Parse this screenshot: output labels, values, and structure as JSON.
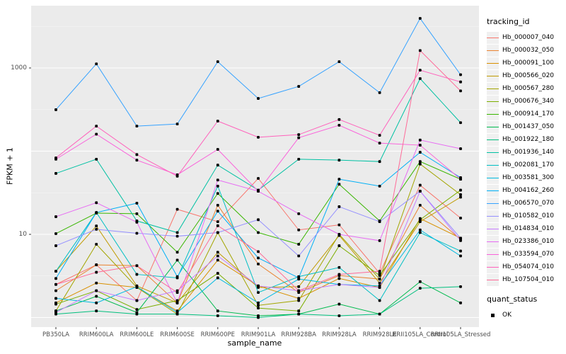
{
  "figure": {
    "panel_bg": "#EBEBEB",
    "grid_color": "#FFFFFF",
    "tick_color": "#333333",
    "tick_text_color": "#4D4D4D",
    "point_color": "#000000"
  },
  "chart_data": {
    "type": "line",
    "title": "",
    "xlabel": "sample_name",
    "ylabel": "FPKM + 1",
    "y_scale": "log10",
    "grid": true,
    "legend_position": "right",
    "ylim": [
      0.8,
      5600
    ],
    "y_ticks": [
      {
        "label": "1000",
        "value": 1000
      },
      {
        "label": "10",
        "value": 10
      }
    ],
    "categories": [
      "PB350LA",
      "RRIM600LA",
      "RRIM600LE",
      "RRIM600SE",
      "RRIM600PE",
      "RRIM901LA",
      "RRIM928BA",
      "RRIM928LA",
      "RRIM928LE",
      "RRII105LA_Control",
      "RRII105LA_Stressed"
    ],
    "series": [
      {
        "name": "Hb_000007_040",
        "color": "#F8766D",
        "values": [
          2.5,
          4.3,
          1.6,
          20,
          14.2,
          47,
          11.3,
          13,
          3.4,
          39,
          15.7
        ]
      },
      {
        "name": "Hb_000032_050",
        "color": "#EA8331",
        "values": [
          2.1,
          4.3,
          4.2,
          1.5,
          22.4,
          4.4,
          2.0,
          3.2,
          2.9,
          22.4,
          8.7
        ]
      },
      {
        "name": "Hb_000091_100",
        "color": "#D89000",
        "values": [
          1.5,
          2.6,
          2.3,
          1.2,
          4.9,
          2.4,
          1.7,
          2.95,
          2.3,
          15.5,
          9.0
        ]
      },
      {
        "name": "Hb_000566_020",
        "color": "#C09B00",
        "values": [
          3.6,
          12.6,
          2.4,
          1.5,
          6.1,
          2.3,
          2.35,
          9.7,
          2.6,
          14.2,
          28
        ]
      },
      {
        "name": "Hb_000567_280",
        "color": "#A3A500",
        "values": [
          1.2,
          7.6,
          2.3,
          1.1,
          10.5,
          1.4,
          1.6,
          10,
          2.9,
          70,
          30
        ]
      },
      {
        "name": "Hb_000676_340",
        "color": "#7CAE00",
        "values": [
          1.45,
          2.1,
          1.25,
          1.6,
          3.4,
          1.3,
          1.2,
          7.3,
          3.2,
          15,
          34
        ]
      },
      {
        "name": "Hb_000914_170",
        "color": "#39B600",
        "values": [
          10.2,
          18,
          17.7,
          6.1,
          31,
          10.5,
          7.6,
          40,
          14.5,
          75,
          46
        ]
      },
      {
        "name": "Hb_001437_050",
        "color": "#00BB4E",
        "values": [
          1.2,
          1.8,
          1.15,
          4.9,
          1.2,
          1.05,
          1.1,
          1.45,
          1.1,
          2.7,
          1.5
        ]
      },
      {
        "name": "Hb_001922_180",
        "color": "#00BF7D",
        "values": [
          1.1,
          1.2,
          1.1,
          1.1,
          1.05,
          1.0,
          1.1,
          1.05,
          1.1,
          2.25,
          2.35
        ]
      },
      {
        "name": "Hb_001936_140",
        "color": "#00C1A3",
        "values": [
          54,
          80,
          14.5,
          10.5,
          68,
          34,
          80,
          78,
          75,
          745,
          220
        ]
      },
      {
        "name": "Hb_002081_170",
        "color": "#00BFC4",
        "values": [
          3.6,
          18.3,
          3.3,
          3.0,
          38,
          2.0,
          3.1,
          4.0,
          1.6,
          10.5,
          6.3
        ]
      },
      {
        "name": "Hb_003581_300",
        "color": "#00BAE0",
        "values": [
          1.7,
          1.5,
          2.35,
          1.15,
          3.0,
          1.5,
          2.9,
          2.5,
          2.4,
          11.3,
          5.5
        ]
      },
      {
        "name": "Hb_004162_260",
        "color": "#00B0F6",
        "values": [
          2.95,
          18.3,
          23.7,
          3.1,
          19,
          5.2,
          3.0,
          46,
          38,
          97,
          48
        ]
      },
      {
        "name": "Hb_006570_070",
        "color": "#35A2FF",
        "values": [
          315,
          1120,
          200,
          212,
          1190,
          430,
          600,
          1190,
          505,
          3940,
          830
        ]
      },
      {
        "name": "Hb_010582_010",
        "color": "#9590FF",
        "values": [
          7.3,
          11.5,
          10.3,
          9.5,
          10.5,
          15,
          5.5,
          21.5,
          14.2,
          33,
          9.0
        ]
      },
      {
        "name": "Hb_014834_010",
        "color": "#C77CFF",
        "values": [
          1.15,
          2.1,
          1.6,
          2.1,
          5.5,
          2.4,
          2.1,
          2.5,
          2.3,
          33,
          8.4
        ]
      },
      {
        "name": "Hb_023386_010",
        "color": "#E76BF3",
        "values": [
          16.3,
          24,
          14,
          1.5,
          45,
          33,
          17.7,
          10,
          8.4,
          136,
          107
        ]
      },
      {
        "name": "Hb_033594_070",
        "color": "#FA62DB",
        "values": [
          80,
          160,
          78,
          52,
          105,
          33,
          145,
          205,
          125,
          118,
          46
        ]
      },
      {
        "name": "Hb_054074_010",
        "color": "#FF62BC",
        "values": [
          83,
          200,
          91,
          50,
          230,
          147,
          158,
          240,
          155,
          940,
          680
        ]
      },
      {
        "name": "Hb_107504_010",
        "color": "#FF6A98",
        "values": [
          2.5,
          3.5,
          4.2,
          2.0,
          12.7,
          6.2,
          2.1,
          3.3,
          3.6,
          1620,
          530
        ]
      }
    ]
  },
  "legend": {
    "tracking_title": "tracking_id",
    "quant_title": "quant_status",
    "quant_items": [
      {
        "label": "OK",
        "marker": "black-square"
      }
    ]
  }
}
